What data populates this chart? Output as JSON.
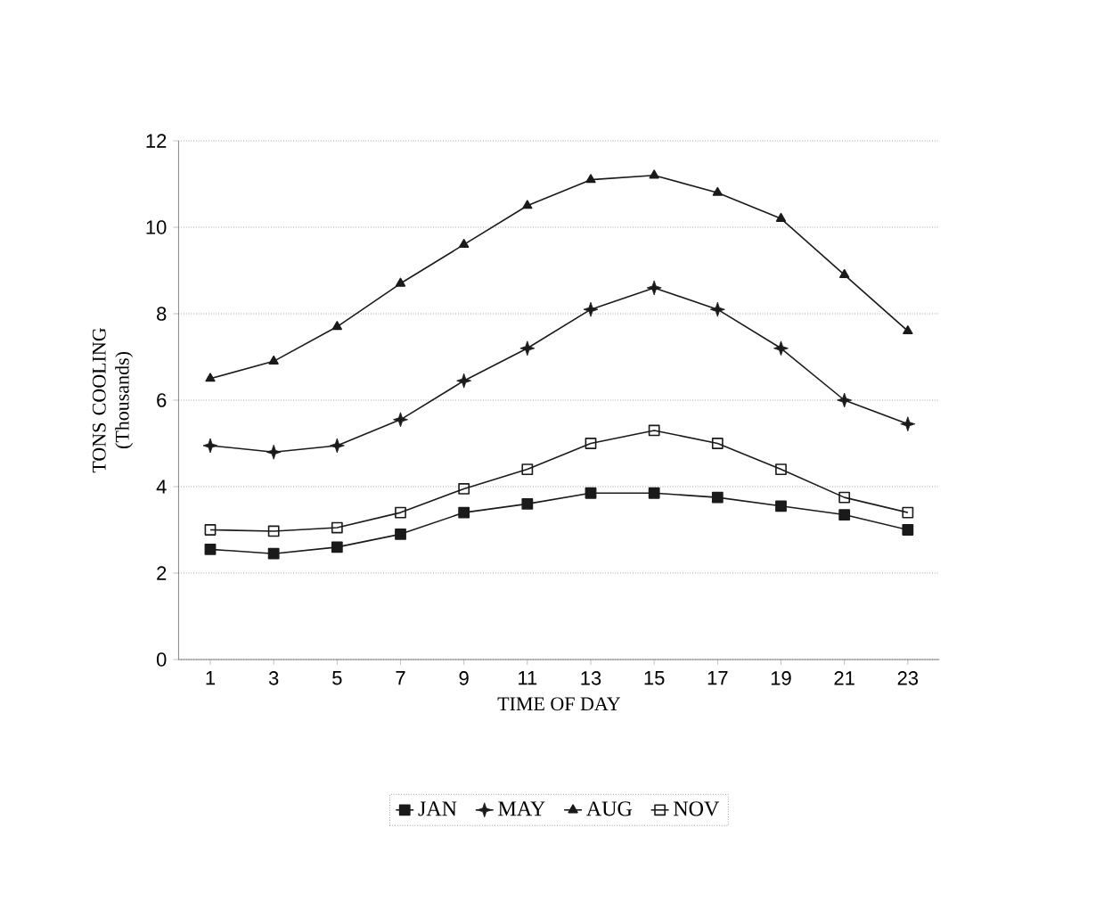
{
  "chart_data": {
    "type": "line",
    "xlabel": "TIME OF DAY",
    "ylabel": "TONS COOLING (Thousands)",
    "categories": [
      "1",
      "3",
      "5",
      "7",
      "9",
      "11",
      "13",
      "15",
      "17",
      "19",
      "21",
      "23"
    ],
    "series": [
      {
        "name": "JAN",
        "color": "#1a1a1a",
        "marker": "square",
        "values": [
          2.55,
          2.45,
          2.6,
          2.9,
          3.4,
          3.6,
          3.85,
          3.85,
          3.75,
          3.55,
          3.35,
          3.0
        ]
      },
      {
        "name": "MAY",
        "color": "#1a1a1a",
        "marker": "star",
        "values": [
          4.95,
          4.8,
          4.95,
          5.55,
          6.45,
          7.2,
          8.1,
          8.6,
          8.1,
          7.2,
          6.0,
          5.45
        ]
      },
      {
        "name": "AUG",
        "color": "#1a1a1a",
        "marker": "triangle",
        "values": [
          6.5,
          6.9,
          7.7,
          8.7,
          9.6,
          10.5,
          11.1,
          11.2,
          10.8,
          10.2,
          8.9,
          7.6
        ]
      },
      {
        "name": "NOV",
        "color": "#1a1a1a",
        "marker": "square",
        "values": [
          3.0,
          2.97,
          3.05,
          3.4,
          3.95,
          4.4,
          5.0,
          5.3,
          5.0,
          4.4,
          3.75,
          3.4
        ]
      }
    ],
    "ylim": [
      0,
      12
    ],
    "yticks": [
      0,
      2,
      4,
      6,
      8,
      10,
      12
    ],
    "grid": "y",
    "legend": "bottom",
    "line_style": "solid"
  }
}
